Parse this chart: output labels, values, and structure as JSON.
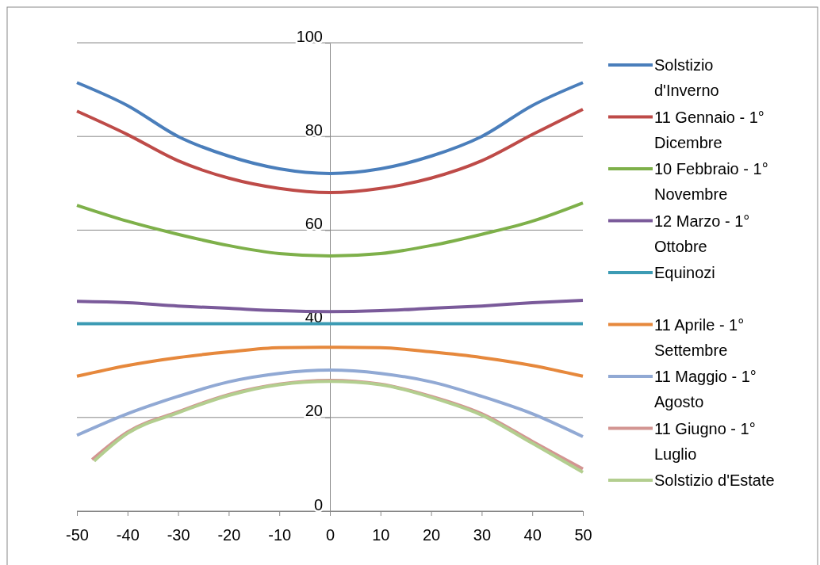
{
  "chart_data": {
    "type": "line",
    "xlim": [
      -50,
      50
    ],
    "ylim": [
      0,
      100
    ],
    "xticks": [
      -50,
      -40,
      -30,
      -20,
      -10,
      0,
      10,
      20,
      30,
      40,
      50
    ],
    "yticks": [
      0,
      20,
      40,
      60,
      80,
      100
    ],
    "grid": "y",
    "legend": "right",
    "marker": "none",
    "line_style": "solid",
    "x": [
      -50,
      -40,
      -30,
      -20,
      -10,
      0,
      10,
      20,
      30,
      40,
      50
    ],
    "series": [
      {
        "name": "Solstizio d'Inverno",
        "color": "#4a7ebb",
        "values": [
          91.5,
          86.6,
          80.0,
          75.8,
          73.1,
          72.1,
          73.1,
          75.8,
          80.0,
          86.6,
          91.5
        ]
      },
      {
        "name": "11 Gennaio - 1° Dicembre",
        "color": "#be4b48",
        "values": [
          85.4,
          80.4,
          74.8,
          71.1,
          68.9,
          68.0,
          68.9,
          71.1,
          74.8,
          80.4,
          85.8
        ]
      },
      {
        "name": "10 Febbraio - 1° Novembre",
        "color": "#7eb04a",
        "values": [
          65.3,
          61.9,
          59.1,
          56.7,
          55.0,
          54.5,
          55.0,
          56.7,
          59.1,
          61.9,
          65.8
        ]
      },
      {
        "name": "12 Marzo - 1° Ottobre",
        "color": "#7a5a9a",
        "values": [
          44.8,
          44.5,
          43.8,
          43.3,
          42.8,
          42.6,
          42.8,
          43.3,
          43.8,
          44.5,
          45.0
        ]
      },
      {
        "name": "Equinozi",
        "color": "#3c9bb4",
        "values": [
          40,
          40,
          40,
          40,
          40,
          40,
          40,
          40,
          40,
          40,
          40
        ]
      },
      {
        "name": "11 Aprile - 1° Settembre",
        "color": "#e6883c",
        "values": [
          28.8,
          31.1,
          32.8,
          34.0,
          34.9,
          35.0,
          34.9,
          34.0,
          32.8,
          31.1,
          28.8
        ]
      },
      {
        "name": "11 Maggio - 1° Agosto",
        "color": "#91a9d4",
        "values": [
          16.2,
          20.8,
          24.5,
          27.6,
          29.4,
          30.1,
          29.4,
          27.6,
          24.5,
          20.8,
          15.9
        ]
      },
      {
        "name": "11 Giugno - 1° Luglio",
        "color": "#d39592",
        "x": [
          -47,
          -40,
          -30,
          -20,
          -10,
          0,
          10,
          20,
          30,
          40,
          50
        ],
        "values": [
          11.0,
          16.9,
          21.2,
          24.9,
          27.1,
          27.9,
          27.1,
          24.5,
          20.8,
          14.9,
          9.0
        ]
      },
      {
        "name": "Solstizio d'Estate",
        "color": "#b3ce8f",
        "x": [
          -46.6,
          -40,
          -30,
          -20,
          -10,
          0,
          10,
          20,
          30,
          40,
          50
        ],
        "values": [
          10.7,
          16.6,
          21.0,
          24.7,
          27.0,
          27.7,
          27.0,
          24.3,
          20.5,
          14.5,
          8.3
        ]
      }
    ]
  }
}
